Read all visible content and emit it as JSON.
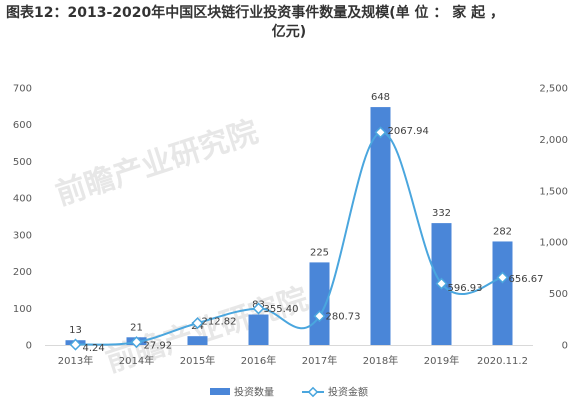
{
  "title": {
    "line1": "图表12：2013-2020年中国区块链行业投资事件数量及规模(单 位 ： 家 起 ，",
    "line2": "亿元)"
  },
  "watermark": "前瞻产业研究院",
  "chart_data": {
    "type": "bar",
    "categories": [
      "2013年",
      "2014年",
      "2015年",
      "2016年",
      "2017年",
      "2018年",
      "2019年",
      "2020.11.2"
    ],
    "series": [
      {
        "name": "投资数量",
        "type": "bar",
        "axis": "left",
        "values": [
          13,
          21,
          24,
          83,
          225,
          648,
          332,
          282
        ],
        "labels": [
          "13",
          "21",
          "24",
          "83",
          "225",
          "648",
          "332",
          "282"
        ],
        "color": "#4a86d8"
      },
      {
        "name": "投资金额",
        "type": "line",
        "axis": "right",
        "values": [
          4.24,
          27.92,
          212.82,
          355.4,
          280.73,
          2067.94,
          596.93,
          656.67
        ],
        "labels": [
          "4.24",
          "27.92",
          "212.82",
          "355.40",
          "280.73",
          "2067.94",
          "596.93",
          "656.67"
        ],
        "color": "#4aa6de"
      }
    ],
    "y_left": {
      "min": 0,
      "max": 700,
      "ticks": [
        "0",
        "100",
        "200",
        "300",
        "400",
        "500",
        "600",
        "700"
      ]
    },
    "y_right": {
      "min": 0,
      "max": 2500,
      "ticks": [
        "0",
        "500",
        "1,000",
        "1,500",
        "2,000",
        "2,500"
      ]
    },
    "legend": {
      "position": "bottom"
    },
    "grid": false
  }
}
